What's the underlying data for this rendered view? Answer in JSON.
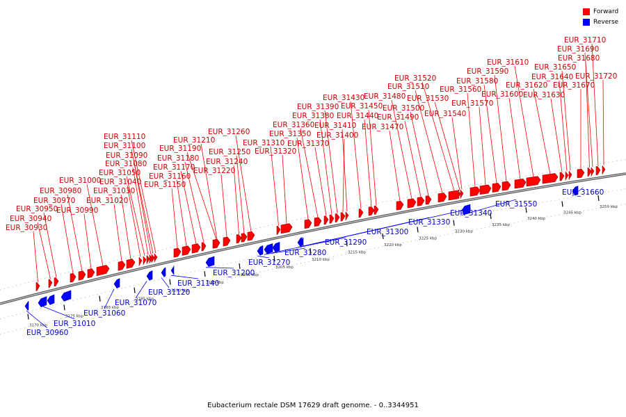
{
  "caption": "Eubacterium rectale DSM 17629 draft genome. - 0..3344951",
  "legend": [
    {
      "label": "Forward",
      "color": "#ff0000"
    },
    {
      "label": "Reverse",
      "color": "#0000ff"
    }
  ],
  "colors": {
    "forward": "#ff0000",
    "reverse": "#0000ff",
    "backbone": "#888888"
  },
  "ticks": [
    "3170 kbp",
    "3175 kbp",
    "3180 kbp",
    "3185 kbp",
    "3190 kbp",
    "3195 kbp",
    "3200 kbp",
    "3205 kbp",
    "3210 kbp",
    "3215 kbp",
    "3220 kbp",
    "3225 kbp",
    "3230 kbp",
    "3235 kbp",
    "3240 kbp",
    "3245 kbp",
    "3250 kbp"
  ],
  "forward_genes": [
    "EUR_30930",
    "EUR_30940",
    "EUR_30950",
    "EUR_30970",
    "EUR_30980",
    "EUR_30990",
    "EUR_31000",
    "EUR_31020",
    "EUR_31030",
    "EUR_31040",
    "EUR_31050",
    "EUR_31080",
    "EUR_31090",
    "EUR_31100",
    "EUR_31110",
    "EUR_31150",
    "EUR_31160",
    "EUR_31170",
    "EUR_31180",
    "EUR_31190",
    "EUR_31210",
    "EUR_31220",
    "EUR_31240",
    "EUR_31250",
    "EUR_31260",
    "EUR_31310",
    "EUR_31320",
    "EUR_31350",
    "EUR_31360",
    "EUR_31370",
    "EUR_31380",
    "EUR_31390",
    "EUR_31400",
    "EUR_31410",
    "EUR_31430",
    "EUR_31440",
    "EUR_31450",
    "EUR_31470",
    "EUR_31480",
    "EUR_31490",
    "EUR_31500",
    "EUR_31510",
    "EUR_31520",
    "EUR_31530",
    "EUR_31540",
    "EUR_31560",
    "EUR_31570",
    "EUR_31580",
    "EUR_31590",
    "EUR_31600",
    "EUR_31610",
    "EUR_31620",
    "EUR_31630",
    "EUR_31640",
    "EUR_31650",
    "EUR_31670",
    "EUR_31680",
    "EUR_31690",
    "EUR_31710",
    "EUR_31720"
  ],
  "reverse_genes": [
    "EUR_30960",
    "EUR_31010",
    "EUR_31060",
    "EUR_31070",
    "EUR_31120",
    "EUR_31140",
    "EUR_31200",
    "EUR_31270",
    "EUR_31280",
    "EUR_31290",
    "EUR_31300",
    "EUR_31330",
    "EUR_31340",
    "EUR_31550",
    "EUR_31660"
  ]
}
